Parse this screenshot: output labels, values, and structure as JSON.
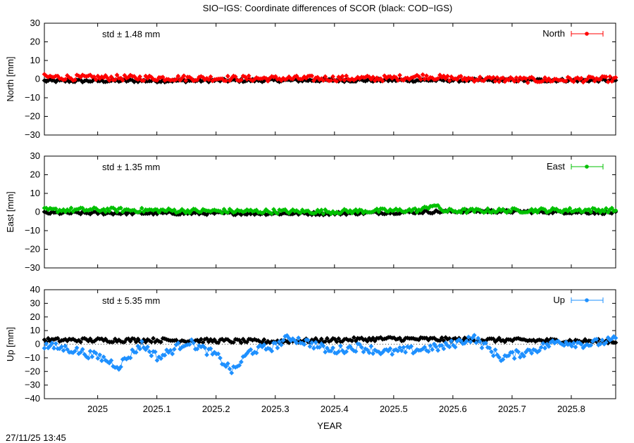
{
  "title": "SIO−IGS: Coordinate differences of SCOR (black: COD−IGS)",
  "timestamp": "27/11/25 13:45",
  "colors": {
    "north": "#ff0000",
    "east": "#00c000",
    "up": "#1e90ff",
    "ref": "#000000"
  },
  "chart_data": [
    {
      "type": "line",
      "ylabel": "North [mm]",
      "ylim": [
        -30,
        30
      ],
      "yticks": [
        "30",
        "20",
        "10",
        "0",
        "−10",
        "−20",
        "−30"
      ],
      "xlim": [
        2024.91,
        2025.875
      ],
      "std_label": "std ± 1.48 mm",
      "series": [
        {
          "name": "North",
          "color": "#ff0000",
          "profile": [
            [
              0,
              1.2
            ],
            [
              0.05,
              0.8
            ],
            [
              0.2,
              0.6
            ],
            [
              0.4,
              0.3
            ],
            [
              0.6,
              0.4
            ],
            [
              0.67,
              1.5
            ],
            [
              0.7,
              0.5
            ],
            [
              0.85,
              -0.5
            ],
            [
              1,
              0
            ]
          ],
          "noise": 1.5
        },
        {
          "color": "#000000",
          "profile": [
            [
              0,
              -1
            ],
            [
              0.5,
              -0.6
            ],
            [
              1,
              -0.6
            ]
          ],
          "noise": 0.8
        }
      ]
    },
    {
      "type": "line",
      "ylabel": "East [mm]",
      "ylim": [
        -30,
        30
      ],
      "yticks": [
        "30",
        "20",
        "10",
        "0",
        "−10",
        "−20",
        "−30"
      ],
      "xlim": [
        2024.91,
        2025.875
      ],
      "std_label": "std ± 1.35 mm",
      "series": [
        {
          "name": "East",
          "color": "#00c000",
          "profile": [
            [
              0,
              1
            ],
            [
              0.1,
              1.2
            ],
            [
              0.3,
              0.5
            ],
            [
              0.5,
              0.2
            ],
            [
              0.66,
              1
            ],
            [
              0.68,
              4
            ],
            [
              0.7,
              0.5
            ],
            [
              0.9,
              1
            ],
            [
              1,
              1
            ]
          ],
          "noise": 1.2
        },
        {
          "color": "#000000",
          "profile": [
            [
              0,
              -0.5
            ],
            [
              0.5,
              -0.8
            ],
            [
              0.75,
              0.5
            ],
            [
              1,
              -0.3
            ]
          ],
          "noise": 0.8
        }
      ]
    },
    {
      "type": "line",
      "ylabel": "Up [mm]",
      "ylim": [
        -40,
        40
      ],
      "yticks": [
        "40",
        "30",
        "20",
        "10",
        "0",
        "−10",
        "−20",
        "−30",
        "−40"
      ],
      "xlim": [
        2024.91,
        2025.875
      ],
      "std_label": "std ± 5.35 mm",
      "series": [
        {
          "name": "Up",
          "color": "#1e90ff",
          "profile": [
            [
              0,
              -1
            ],
            [
              0.05,
              -4
            ],
            [
              0.1,
              -10
            ],
            [
              0.13,
              -16
            ],
            [
              0.17,
              0
            ],
            [
              0.2,
              -10
            ],
            [
              0.25,
              2
            ],
            [
              0.3,
              -8
            ],
            [
              0.33,
              -20
            ],
            [
              0.36,
              -5
            ],
            [
              0.4,
              -2
            ],
            [
              0.43,
              5
            ],
            [
              0.47,
              0
            ],
            [
              0.5,
              -5
            ],
            [
              0.55,
              -2
            ],
            [
              0.6,
              -6
            ],
            [
              0.65,
              -4
            ],
            [
              0.7,
              -2
            ],
            [
              0.75,
              5
            ],
            [
              0.8,
              -10
            ],
            [
              0.85,
              -5
            ],
            [
              0.9,
              2
            ],
            [
              0.95,
              0
            ],
            [
              1,
              3
            ]
          ],
          "noise": 3
        },
        {
          "color": "#000000",
          "profile": [
            [
              0,
              3
            ],
            [
              0.2,
              3
            ],
            [
              0.4,
              2
            ],
            [
              0.6,
              4
            ],
            [
              0.8,
              3
            ],
            [
              1,
              2
            ]
          ],
          "noise": 1.5
        }
      ]
    }
  ],
  "xticks": [
    {
      "value": 2025.0,
      "label": "2025"
    },
    {
      "value": 2025.1,
      "label": "2025.1"
    },
    {
      "value": 2025.2,
      "label": "2025.2"
    },
    {
      "value": 2025.3,
      "label": "2025.3"
    },
    {
      "value": 2025.4,
      "label": "2025.4"
    },
    {
      "value": 2025.5,
      "label": "2025.5"
    },
    {
      "value": 2025.6,
      "label": "2025.6"
    },
    {
      "value": 2025.7,
      "label": "2025.7"
    },
    {
      "value": 2025.8,
      "label": "2025.8"
    }
  ],
  "xlabel": "YEAR"
}
